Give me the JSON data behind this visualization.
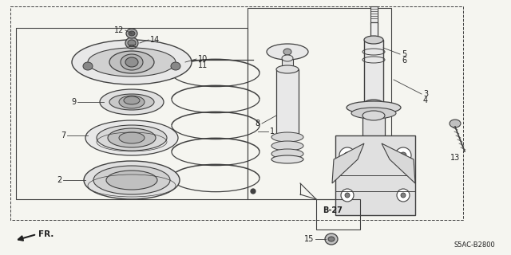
{
  "bg_color": "#f5f5f0",
  "border_color": "#404040",
  "text_color": "#202020",
  "diagram_code": "S5AC-B2800",
  "ref_label": "B-27",
  "fr_label": "FR.",
  "figsize": [
    6.4,
    3.2
  ],
  "dpi": 100
}
